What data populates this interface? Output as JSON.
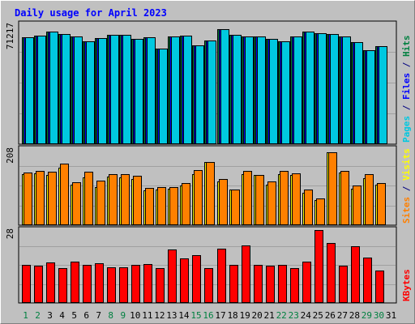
{
  "chart_data": {
    "type": "bar",
    "title": "Daily usage for April 2023",
    "categories": [
      "1",
      "2",
      "3",
      "4",
      "5",
      "6",
      "7",
      "8",
      "9",
      "10",
      "11",
      "12",
      "13",
      "14",
      "15",
      "16",
      "17",
      "18",
      "19",
      "20",
      "21",
      "22",
      "23",
      "24",
      "25",
      "26",
      "27",
      "28",
      "29",
      "30",
      "31"
    ],
    "weekend_days": [
      "1",
      "2",
      "8",
      "9",
      "15",
      "16",
      "22",
      "23",
      "29",
      "30"
    ],
    "panels": [
      {
        "id": "hits",
        "max_label": "71217",
        "ymax": 71217,
        "side_label": [
          {
            "text": "Pages",
            "color": "#00c8e0"
          },
          {
            "text": " / ",
            "color": "#000080"
          },
          {
            "text": "Files",
            "color": "#0000ff"
          },
          {
            "text": " / ",
            "color": "#000080"
          },
          {
            "text": "Hits",
            "color": "#008040"
          }
        ],
        "series": [
          {
            "name": "Hits",
            "color": "#008040",
            "values": [
              63600,
              64300,
              66700,
              65300,
              64200,
              61000,
              63100,
              65200,
              65200,
              62700,
              63700,
              57000,
              64000,
              64400,
              58900,
              61500,
              68500,
              64800,
              64000,
              63800,
              62600,
              61300,
              64100,
              66700,
              66100,
              65600,
              64000,
              60400,
              55700,
              58200,
              0
            ]
          },
          {
            "name": "Files",
            "color": "#0000ff",
            "values": [
              63600,
              64300,
              66700,
              65300,
              64200,
              61000,
              63100,
              65200,
              65200,
              62700,
              63700,
              57000,
              64000,
              64400,
              58900,
              61500,
              68500,
              64800,
              64000,
              63800,
              62600,
              61300,
              64100,
              66700,
              66100,
              65600,
              64000,
              60400,
              55700,
              58200,
              0
            ]
          },
          {
            "name": "Pages",
            "color": "#00c8e0",
            "values": [
              63600,
              64300,
              66700,
              65300,
              64200,
              61000,
              63100,
              65200,
              65200,
              62700,
              63700,
              57000,
              64000,
              64400,
              58900,
              61500,
              68500,
              64800,
              64000,
              63800,
              62600,
              61300,
              64100,
              66700,
              66100,
              65600,
              64000,
              60400,
              55700,
              58200,
              0
            ]
          }
        ]
      },
      {
        "id": "sites",
        "max_label": "208",
        "ymax": 208,
        "side_label": [
          {
            "text": "Sites",
            "color": "#ff8000"
          },
          {
            "text": " / ",
            "color": "#000080"
          },
          {
            "text": "Visits",
            "color": "#ffff00"
          }
        ],
        "series": [
          {
            "name": "Visits",
            "color": "#ffff00",
            "values": [
              140,
              142,
              138,
              156,
              110,
              130,
              104,
              132,
              130,
              126,
              96,
              98,
              99,
              108,
              140,
              172,
              120,
              98,
              140,
              137,
              110,
              140,
              137,
              88,
              69,
              200,
              144,
              100,
              128,
              110,
              0
            ]
          },
          {
            "name": "Sites",
            "color": "#ff8000",
            "values": [
              143,
              149,
              145,
              168,
              118,
              145,
              122,
              140,
              140,
              134,
              102,
              103,
              105,
              114,
              150,
              172,
              126,
              98,
              149,
              137,
              120,
              149,
              142,
              98,
              74,
              200,
              149,
              108,
              140,
              114,
              0
            ]
          }
        ]
      },
      {
        "id": "kbytes",
        "max_label": "28",
        "ymax": 28,
        "side_label": [
          {
            "text": "KBytes",
            "color": "#ff0000"
          }
        ],
        "series": [
          {
            "name": "KBytes",
            "color": "#ff0000",
            "values": [
              14.6,
              14.2,
              15.4,
              13.5,
              15.9,
              14.5,
              15.3,
              13.8,
              13.8,
              14.6,
              14.8,
              13.5,
              20.4,
              17.0,
              18.3,
              13.3,
              20.8,
              14.5,
              22.0,
              14.6,
              14.2,
              14.7,
              13.5,
              16.0,
              28.0,
              23.1,
              14.2,
              21.7,
              17.4,
              12.5,
              0
            ]
          }
        ]
      }
    ],
    "grid": true
  }
}
